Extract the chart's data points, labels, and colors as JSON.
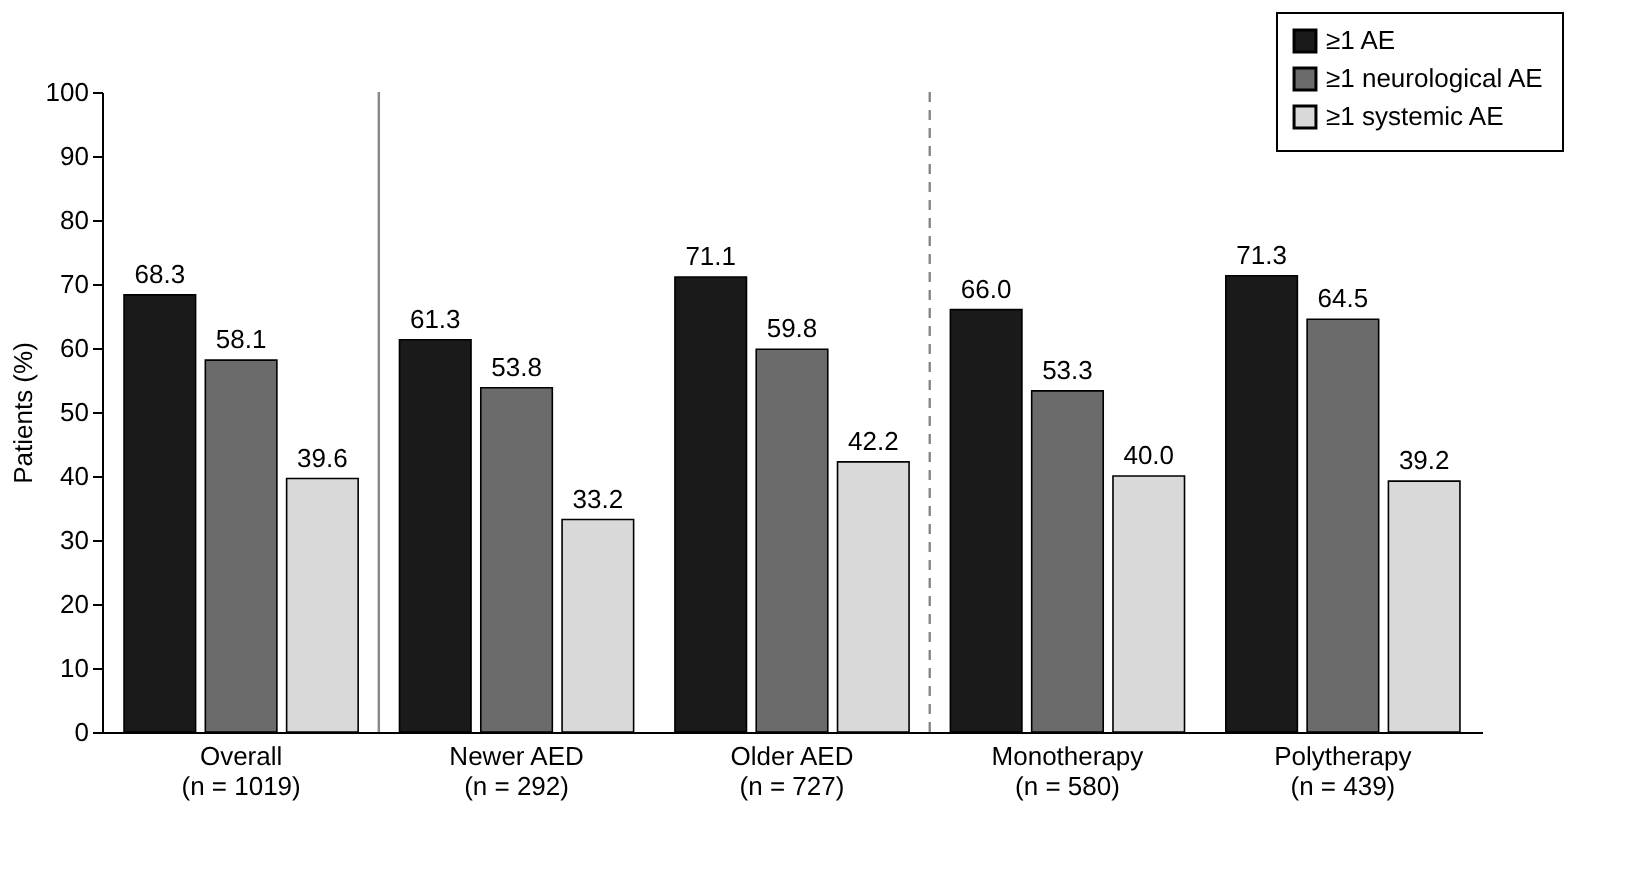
{
  "chart_data": {
    "type": "bar",
    "ylabel": "Patients (%)",
    "ylim": [
      0,
      100
    ],
    "yticks": [
      0,
      10,
      20,
      30,
      40,
      50,
      60,
      70,
      80,
      90,
      100
    ],
    "grid": false,
    "legend": "top right",
    "categories": [
      "Overall\n(n = 1019)",
      "Newer AED\n(n = 292)",
      "Older AED\n(n = 727)",
      "Monotherapy\n(n = 580)",
      "Polytherapy\n(n = 439)"
    ],
    "series": [
      {
        "name": "≥1 AE",
        "color": "#1a1a1a",
        "values": [
          68.3,
          61.3,
          71.1,
          66.0,
          71.3
        ],
        "value_labels": [
          "68.3",
          "61.3",
          "71.1",
          "66.0",
          "71.3"
        ]
      },
      {
        "name": "≥1 neurological AE",
        "color": "#6b6b6b",
        "values": [
          58.1,
          53.8,
          59.8,
          53.3,
          64.5
        ],
        "value_labels": [
          "58.1",
          "53.8",
          "59.8",
          "53.3",
          "64.5"
        ]
      },
      {
        "name": "≥1 systemic AE",
        "color": "#d9d9d9",
        "values": [
          39.6,
          33.2,
          42.2,
          40.0,
          39.2
        ],
        "value_labels": [
          "39.6",
          "33.2",
          "42.2",
          "40.0",
          "39.2"
        ]
      }
    ]
  }
}
